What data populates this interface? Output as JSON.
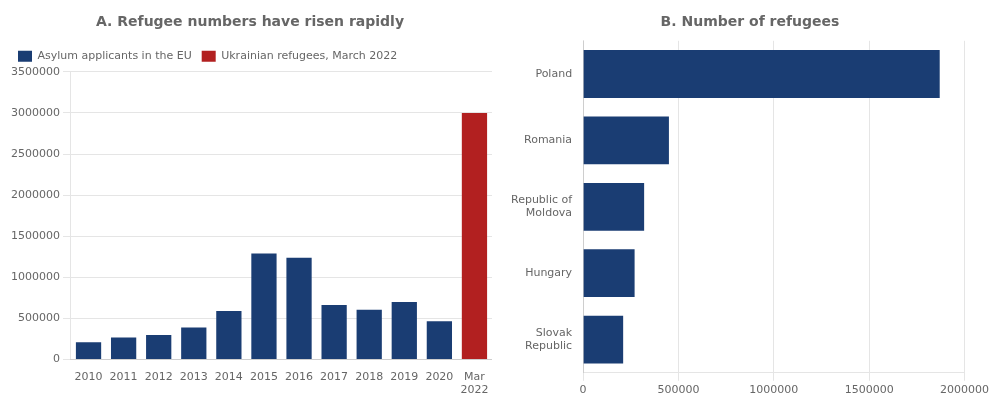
{
  "chart_data": [
    {
      "type": "bar",
      "title": "A. Refugee numbers have risen rapidly",
      "categories": [
        "2010",
        "2011",
        "2012",
        "2013",
        "2014",
        "2015",
        "2016",
        "2017",
        "2018",
        "2019",
        "2020",
        "Mar\n2022"
      ],
      "series": [
        {
          "name": "Asylum applicants in the EU",
          "color": "#1a3d73",
          "values": [
            210000,
            270000,
            300000,
            390000,
            590000,
            1290000,
            1240000,
            665000,
            605000,
            700000,
            465000,
            null
          ]
        },
        {
          "name": "Ukrainian refugees, March 2022",
          "color": "#b22020",
          "values": [
            null,
            null,
            null,
            null,
            null,
            null,
            null,
            null,
            null,
            null,
            null,
            3000000
          ]
        }
      ],
      "ylim": [
        0,
        3500000
      ],
      "yticks": [
        0,
        500000,
        1000000,
        1500000,
        2000000,
        2500000,
        3000000,
        3500000
      ],
      "grid": true,
      "legend": "upper left"
    },
    {
      "type": "bar",
      "title": "B. Number of refugees",
      "orientation": "horizontal",
      "categories": [
        "Poland",
        "Romania",
        "Republic of\nMoldova",
        "Hungary",
        "Slovak\nRepublic"
      ],
      "values": [
        1870000,
        450000,
        320000,
        270000,
        210000
      ],
      "color": "#1a3d73",
      "xlim": [
        0,
        2000000
      ],
      "xticks": [
        0,
        500000,
        1000000,
        1500000,
        2000000
      ],
      "grid": true
    }
  ]
}
